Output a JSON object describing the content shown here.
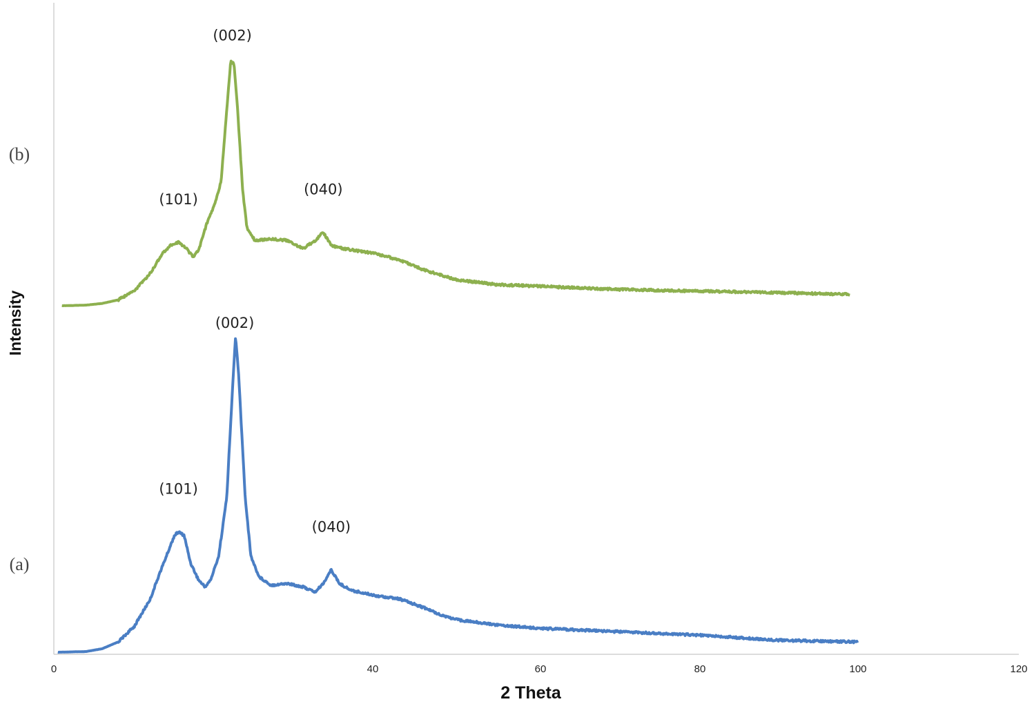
{
  "chart_data": {
    "type": "line",
    "xlabel": "2 Theta",
    "ylabel": "Intensity",
    "xlim": [
      0,
      120
    ],
    "x_ticks": [
      "0",
      "40",
      "60",
      "80",
      "100",
      "120"
    ],
    "x_tick_values": [
      0,
      40,
      60,
      80,
      100,
      120
    ],
    "grid": false,
    "legend": "none",
    "series": [
      {
        "name": "(a)",
        "color": "#4a7ec4",
        "peaks": [
          {
            "label": "(101)",
            "x": 15.5
          },
          {
            "label": "(002)",
            "x": 22.5
          },
          {
            "label": "(040)",
            "x": 34.5
          }
        ],
        "points": [
          [
            0.5,
            0.0
          ],
          [
            4,
            0.2
          ],
          [
            6,
            1.0
          ],
          [
            8,
            3.0
          ],
          [
            10,
            7.5
          ],
          [
            12,
            15.5
          ],
          [
            13,
            22
          ],
          [
            14,
            28
          ],
          [
            15,
            34
          ],
          [
            15.5,
            35
          ],
          [
            16.2,
            34
          ],
          [
            17,
            26
          ],
          [
            18,
            21
          ],
          [
            18.8,
            19
          ],
          [
            19.5,
            21
          ],
          [
            20.5,
            28
          ],
          [
            21.5,
            45
          ],
          [
            22.3,
            80
          ],
          [
            22.6,
            92
          ],
          [
            23,
            80
          ],
          [
            23.8,
            45
          ],
          [
            24.5,
            28
          ],
          [
            25.5,
            22
          ],
          [
            27,
            19.5
          ],
          [
            29,
            20
          ],
          [
            31,
            19
          ],
          [
            32.5,
            17.5
          ],
          [
            33.5,
            20
          ],
          [
            34.5,
            24
          ],
          [
            35.5,
            20
          ],
          [
            37,
            18
          ],
          [
            40,
            16.5
          ],
          [
            43,
            15.5
          ],
          [
            46,
            13
          ],
          [
            48,
            11
          ],
          [
            50,
            9.5
          ],
          [
            55,
            8
          ],
          [
            60,
            7
          ],
          [
            70,
            6
          ],
          [
            80,
            5
          ],
          [
            90,
            3.5
          ],
          [
            100,
            3.0
          ]
        ]
      },
      {
        "name": "(b)",
        "color": "#8db04f",
        "peaks": [
          {
            "label": "(101)",
            "x": 15.5
          },
          {
            "label": "(002)",
            "x": 22.2
          },
          {
            "label": "(040)",
            "x": 33.5
          }
        ],
        "points": [
          [
            1,
            0.0
          ],
          [
            4,
            0.2
          ],
          [
            6,
            0.7
          ],
          [
            8,
            1.8
          ],
          [
            10,
            4.5
          ],
          [
            12,
            10
          ],
          [
            13.5,
            16
          ],
          [
            14.5,
            18.5
          ],
          [
            15.5,
            19.5
          ],
          [
            16.5,
            17.5
          ],
          [
            17.3,
            15
          ],
          [
            18,
            17
          ],
          [
            19,
            25
          ],
          [
            20,
            31
          ],
          [
            20.8,
            38
          ],
          [
            21.5,
            60
          ],
          [
            22,
            75
          ],
          [
            22.4,
            74
          ],
          [
            22.8,
            62
          ],
          [
            23.5,
            35
          ],
          [
            24,
            24
          ],
          [
            25,
            20
          ],
          [
            27,
            20.5
          ],
          [
            29,
            20
          ],
          [
            31,
            17.5
          ],
          [
            32.5,
            20
          ],
          [
            33.5,
            22.5
          ],
          [
            34.5,
            18.5
          ],
          [
            36,
            17.5
          ],
          [
            40,
            16
          ],
          [
            43,
            14
          ],
          [
            46,
            11
          ],
          [
            48,
            9.5
          ],
          [
            50,
            8
          ],
          [
            55,
            6.5
          ],
          [
            60,
            6
          ],
          [
            70,
            5
          ],
          [
            80,
            4.5
          ],
          [
            90,
            4
          ],
          [
            99,
            3.5
          ]
        ]
      }
    ]
  }
}
